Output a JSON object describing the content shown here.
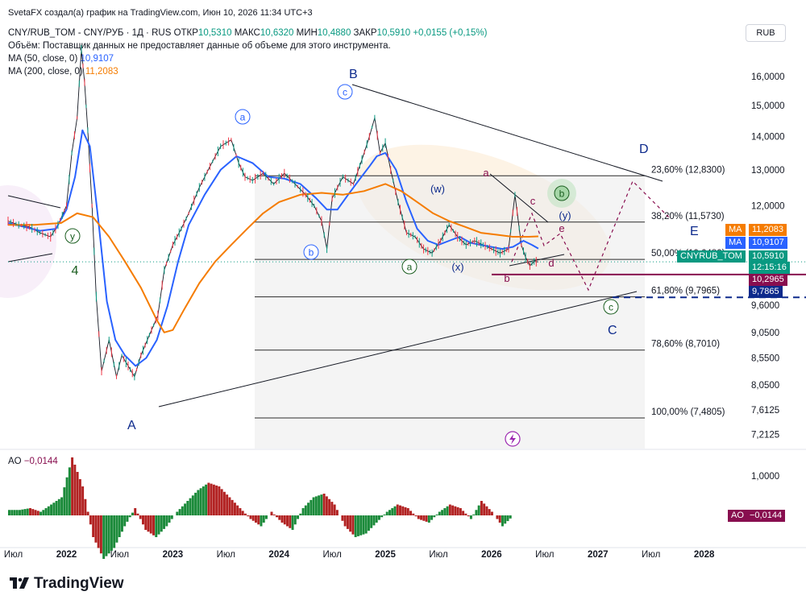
{
  "header": {
    "byline": "SvetaFX создал(а) график на TradingView.com, Июн 10, 2026 11:34 UTC+3",
    "symbol": "CNY/RUB_TOM - CNY/РУБ · 1Д · RUS",
    "open_label": "ОТКР",
    "open": "10,5310",
    "high_label": "МАКС",
    "high": "10,6320",
    "low_label": "МИН",
    "low": "10,4880",
    "close_label": "ЗАКР",
    "close": "10,5910",
    "change": "+0,0155 (+0,15%)",
    "volume_note": "Объём: Поставщик данных не предоставляет данные об объеме для этого инструмента.",
    "ma50_label": "MA (50, close, 0)",
    "ma50_value": "10,9107",
    "ma200_label": "MA (200, close, 0)",
    "ma200_value": "11,2083",
    "currency": "RUB"
  },
  "price_axis": {
    "ticks": [
      {
        "label": "16,0000",
        "value": 16.0
      },
      {
        "label": "15,0000",
        "value": 15.0
      },
      {
        "label": "14,0000",
        "value": 14.0
      },
      {
        "label": "13,0000",
        "value": 13.0
      },
      {
        "label": "12,0000",
        "value": 12.0
      },
      {
        "label": "9,0500",
        "value": 9.05
      },
      {
        "label": "8,5500",
        "value": 8.55
      },
      {
        "label": "8,0500",
        "value": 8.05
      },
      {
        "label": "7,6125",
        "value": 7.6125
      },
      {
        "label": "7,2125",
        "value": 7.2125
      }
    ]
  },
  "badges": {
    "ma200": {
      "tag": "MA",
      "value": "11,2083",
      "color": "#f57c00"
    },
    "ma50": {
      "tag": "MA",
      "value": "10,9107",
      "color": "#2962ff"
    },
    "last": {
      "tag": "CNYRUB_TOM",
      "value": "10,5910",
      "countdown": "12:15:16",
      "color": "#089981"
    },
    "line1": {
      "value": "10,2965",
      "color": "#880e4f"
    },
    "line2": {
      "value": "9,7865",
      "color": "#0d2a8c"
    }
  },
  "fib_levels": [
    {
      "label": "23,60% (12,8300)",
      "value": 12.83
    },
    {
      "label": "38,20% (11,5730)",
      "value": 11.573
    },
    {
      "label": "50,00% (10,6480)",
      "value": 10.648
    },
    {
      "label": "61,80% (9,7965)",
      "value": 9.7965
    },
    {
      "label": "78,60% (8,7010)",
      "value": 8.701
    },
    {
      "label": "100,00% (7,4805)",
      "value": 7.4805
    }
  ],
  "wave_labels": {
    "A": "A",
    "B": "B",
    "C": "C",
    "D": "D",
    "E": "E",
    "four": "4",
    "y": "y",
    "a": "a",
    "b": "b",
    "c": "c",
    "w": "(w)",
    "x": "(x)",
    "yp": "(y)",
    "sa": "a",
    "sb": "b",
    "sc": "c",
    "sd": "d",
    "se": "e",
    "ca": "a",
    "cb": "b",
    "cc": "c"
  },
  "time_axis": {
    "ticks": [
      {
        "label": "Июл",
        "t": 2021.5
      },
      {
        "label": "2022",
        "t": 2022.0
      },
      {
        "label": "Июл",
        "t": 2022.5
      },
      {
        "label": "2023",
        "t": 2023.0
      },
      {
        "label": "Июл",
        "t": 2023.5
      },
      {
        "label": "2024",
        "t": 2024.0
      },
      {
        "label": "Июл",
        "t": 2024.5
      },
      {
        "label": "2025",
        "t": 2025.0
      },
      {
        "label": "Июл",
        "t": 2025.5
      },
      {
        "label": "2026",
        "t": 2026.0
      },
      {
        "label": "Июл",
        "t": 2026.5
      },
      {
        "label": "2027",
        "t": 2027.0
      },
      {
        "label": "Июл",
        "t": 2027.5
      },
      {
        "label": "2028",
        "t": 2028.0
      }
    ]
  },
  "ao": {
    "label": "AO",
    "value": "−0,0144",
    "axis_label": "1,0000",
    "axis_value": 1.0,
    "badge_tag": "AO",
    "badge_value": "−0,0144"
  },
  "branding": {
    "logo_text": "TradingView"
  },
  "chart_data": {
    "type": "line",
    "title": "CNY/RUB_TOM - CNY/РУБ · 1Д · RUS",
    "xlabel": "",
    "ylabel": "",
    "xlim": [
      2021.45,
      2028.2
    ],
    "ylim": [
      7.0,
      16.8
    ],
    "log_scale": true,
    "grid": false,
    "series": [
      {
        "name": "",
        "x": [
          2021.45,
          2021.55,
          2021.65,
          2021.75,
          2021.85,
          2021.92,
          2022.0,
          2022.05,
          2022.1,
          2022.14,
          2022.17,
          2022.2,
          2022.24,
          2022.28,
          2022.33,
          2022.4,
          2022.47,
          2022.52,
          2022.58,
          2022.64,
          2022.7,
          2022.78,
          2022.86,
          2022.92,
          2023.0,
          2023.08,
          2023.15,
          2023.25,
          2023.35,
          2023.45,
          2023.55,
          2023.62,
          2023.68,
          2023.75,
          2023.85,
          2023.95,
          2024.05,
          2024.15,
          2024.25,
          2024.33,
          2024.4,
          2024.45,
          2024.5,
          2024.6,
          2024.7,
          2024.78,
          2024.85,
          2024.9,
          2024.95,
          2025.0,
          2025.05,
          2025.12,
          2025.2,
          2025.28,
          2025.36,
          2025.44,
          2025.52,
          2025.6,
          2025.68,
          2025.76,
          2025.84,
          2025.92,
          2026.0,
          2026.08,
          2026.16,
          2026.22,
          2026.28,
          2026.32,
          2026.36,
          2026.4,
          2026.44
        ],
        "values": [
          11.6,
          11.5,
          11.45,
          11.3,
          11.2,
          11.5,
          12.0,
          13.5,
          14.6,
          17.0,
          15.8,
          14.2,
          12.0,
          9.8,
          8.3,
          8.9,
          8.2,
          8.6,
          8.4,
          8.2,
          8.6,
          9.0,
          9.4,
          10.4,
          11.0,
          11.4,
          11.8,
          12.5,
          13.1,
          13.7,
          13.9,
          13.2,
          12.8,
          12.7,
          12.9,
          12.6,
          12.9,
          12.6,
          12.3,
          12.0,
          11.6,
          10.9,
          12.2,
          12.8,
          12.6,
          13.3,
          14.0,
          14.6,
          13.5,
          13.8,
          13.0,
          12.1,
          11.3,
          11.2,
          10.9,
          10.8,
          11.1,
          11.5,
          11.2,
          11.0,
          11.1,
          11.0,
          10.9,
          10.8,
          10.9,
          12.3,
          11.0,
          10.7,
          10.5,
          10.6,
          10.59
        ]
      },
      {
        "name": "MA (50, close, 0)",
        "x": [
          2021.45,
          2021.6,
          2021.75,
          2021.9,
          2022.0,
          2022.08,
          2022.15,
          2022.22,
          2022.3,
          2022.38,
          2022.46,
          2022.55,
          2022.65,
          2022.75,
          2022.85,
          2022.95,
          2023.05,
          2023.15,
          2023.3,
          2023.45,
          2023.6,
          2023.75,
          2023.9,
          2024.05,
          2024.2,
          2024.35,
          2024.45,
          2024.55,
          2024.65,
          2024.75,
          2024.85,
          2024.92,
          2025.0,
          2025.1,
          2025.2,
          2025.3,
          2025.4,
          2025.5,
          2025.6,
          2025.7,
          2025.8,
          2025.9,
          2026.0,
          2026.1,
          2026.2,
          2026.3,
          2026.38,
          2026.44
        ],
        "values": [
          11.55,
          11.45,
          11.35,
          11.4,
          11.9,
          12.8,
          14.2,
          13.7,
          11.6,
          9.7,
          8.9,
          8.6,
          8.4,
          8.55,
          8.9,
          9.6,
          10.6,
          11.5,
          12.3,
          13.0,
          13.4,
          13.2,
          12.8,
          12.75,
          12.6,
          12.2,
          11.9,
          11.9,
          12.3,
          12.7,
          13.1,
          13.4,
          13.5,
          13.0,
          12.1,
          11.4,
          11.1,
          11.0,
          11.1,
          11.2,
          11.05,
          11.0,
          10.95,
          10.9,
          10.95,
          11.1,
          11.0,
          10.91
        ]
      },
      {
        "name": "MA (200, close, 0)",
        "x": [
          2021.45,
          2021.7,
          2021.95,
          2022.1,
          2022.25,
          2022.4,
          2022.55,
          2022.7,
          2022.85,
          2022.92,
          2023.0,
          2023.1,
          2023.25,
          2023.4,
          2023.55,
          2023.7,
          2023.85,
          2024.0,
          2024.2,
          2024.4,
          2024.6,
          2024.8,
          2025.0,
          2025.15,
          2025.3,
          2025.45,
          2025.6,
          2025.75,
          2025.9,
          2026.05,
          2026.2,
          2026.35,
          2026.44
        ],
        "values": [
          11.5,
          11.5,
          11.55,
          11.8,
          11.7,
          11.2,
          10.6,
          10.0,
          9.3,
          9.05,
          9.1,
          9.5,
          10.1,
          10.6,
          11.0,
          11.4,
          11.8,
          12.1,
          12.3,
          12.35,
          12.3,
          12.4,
          12.6,
          12.4,
          12.1,
          11.8,
          11.6,
          11.45,
          11.3,
          11.25,
          11.2,
          11.2,
          11.21
        ]
      }
    ],
    "price_badges": [
      {
        "value": 11.2083,
        "label": "11,2083"
      },
      {
        "value": 10.9107,
        "label": "10,9107"
      },
      {
        "value": 10.591,
        "label": "10,5910"
      },
      {
        "value": 10.2965,
        "label": "10,2965"
      },
      {
        "value": 9.7865,
        "label": "9,7865"
      }
    ],
    "ao_values": [
      0.15,
      0.2,
      0.1,
      0.3,
      0.5,
      1.6,
      0.8,
      -0.6,
      -1.2,
      -0.9,
      -0.3,
      0.2,
      -0.4,
      -0.6,
      -0.3,
      0.1,
      0.4,
      0.7,
      0.9,
      0.8,
      0.5,
      0.2,
      -0.1,
      -0.3,
      0.1,
      -0.2,
      -0.4,
      0.2,
      0.5,
      0.6,
      0.3,
      -0.3,
      -0.6,
      -0.5,
      -0.2,
      0.1,
      0.3,
      0.2,
      -0.1,
      -0.2,
      0.1,
      0.3,
      0.2,
      -0.1,
      0.4,
      0.1,
      -0.3,
      -0.0144
    ]
  }
}
